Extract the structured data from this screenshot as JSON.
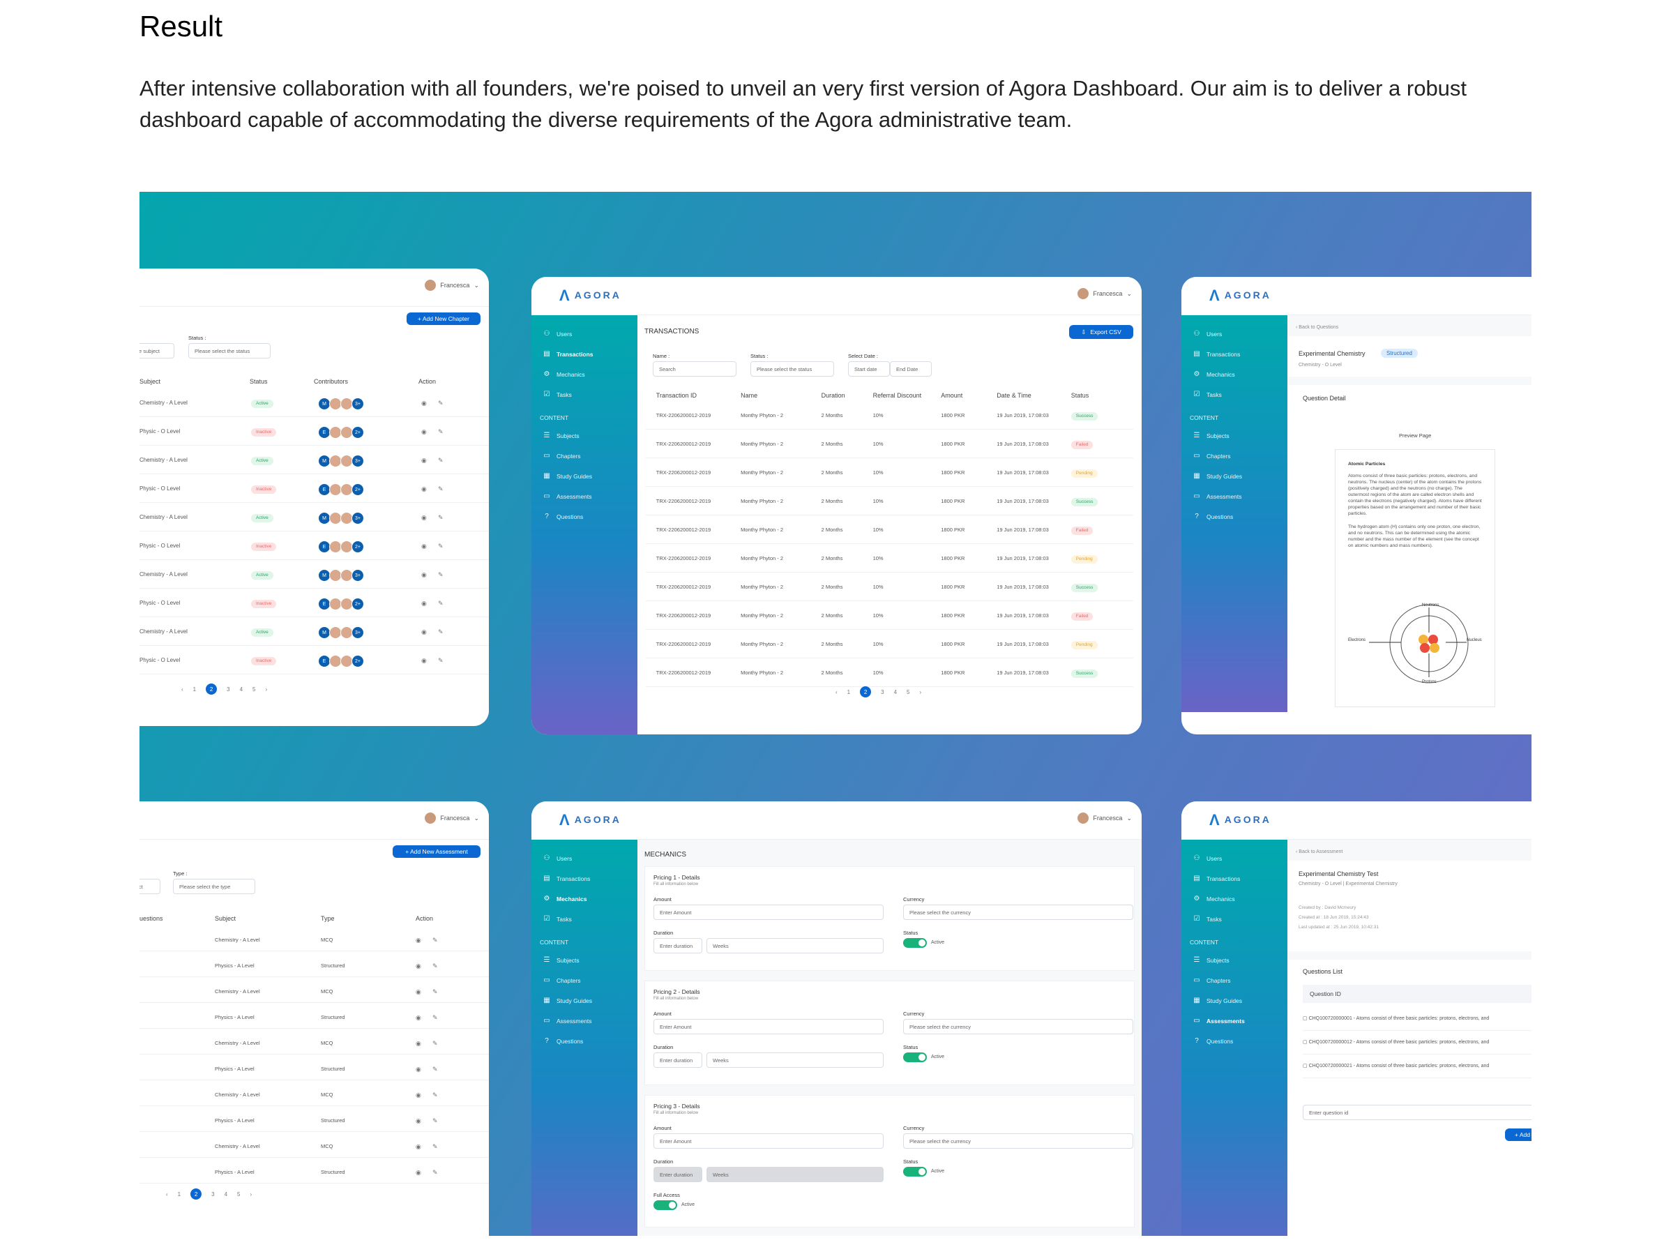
{
  "article": {
    "title": "Result",
    "intro": "After intensive collaboration with all founders, we're poised to unveil an very first version of Agora Dashboard. Our aim is to deliver a robust dashboard capable of accommodating the diverse requirements of the Agora administrative team."
  },
  "app": {
    "logo_text": "AGORA",
    "user_name": "Francesca"
  },
  "colors": {
    "primary": "#0b68d2",
    "sidebar_top": "#00a9ad",
    "sidebar_bottom": "#6a63c6",
    "active": "#2aa866",
    "inactive": "#ee6666",
    "pending": "#e6a52a"
  },
  "sidebar": {
    "items": [
      {
        "label": "Users",
        "icon": "users-icon"
      },
      {
        "label": "Transactions",
        "icon": "card-icon"
      },
      {
        "label": "Mechanics",
        "icon": "gear-icon"
      },
      {
        "label": "Tasks",
        "icon": "tasks-icon"
      }
    ],
    "content_header": "CONTENT",
    "content_items": [
      {
        "label": "Subjects",
        "icon": "list-icon"
      },
      {
        "label": "Chapters",
        "icon": "doc-icon"
      },
      {
        "label": "Study Guides",
        "icon": "grid-icon"
      },
      {
        "label": "Assessments",
        "icon": "doc-icon"
      },
      {
        "label": "Questions",
        "icon": "question-icon"
      }
    ]
  },
  "chapters": {
    "add_button": "+ Add New Chapter",
    "status_label": "Status :",
    "subject_filter": "e subject",
    "status_placeholder": "Please select the status",
    "columns": [
      "Subject",
      "Status",
      "Contributors",
      "Action"
    ],
    "rows": [
      {
        "subject": "Chemistry - A Level",
        "status": "Active",
        "more": "3+"
      },
      {
        "subject": "Physic - O Level",
        "status": "Inactive",
        "more": "2+"
      },
      {
        "subject": "Chemistry - A Level",
        "status": "Active",
        "more": "3+"
      },
      {
        "subject": "Physic - O Level",
        "status": "Inactive",
        "more": "2+"
      },
      {
        "subject": "Chemistry - A Level",
        "status": "Active",
        "more": "3+"
      },
      {
        "subject": "Physic - O Level",
        "status": "Inactive",
        "more": "2+"
      },
      {
        "subject": "Chemistry - A Level",
        "status": "Active",
        "more": "3+"
      },
      {
        "subject": "Physic - O Level",
        "status": "Inactive",
        "more": "2+"
      },
      {
        "subject": "Chemistry - A Level",
        "status": "Active",
        "more": "3+"
      },
      {
        "subject": "Physic - O Level",
        "status": "Inactive",
        "more": "2+"
      }
    ],
    "pages": [
      "1",
      "2",
      "3",
      "4",
      "5"
    ],
    "current_page": "2"
  },
  "transactions": {
    "title": "TRANSACTIONS",
    "export_button": "Export CSV",
    "filters": {
      "name_label": "Name :",
      "name_placeholder": "Search",
      "status_label": "Status :",
      "status_placeholder": "Please select the status",
      "date_label": "Select Date :",
      "start_placeholder": "Start date",
      "end_placeholder": "End Date"
    },
    "columns": [
      "Transaction ID",
      "Name",
      "Duration",
      "Referral Discount",
      "Amount",
      "Date & Time",
      "Status"
    ],
    "rows": [
      {
        "id": "TRX-2206200012-2019",
        "name": "Monthy Phyton - 2",
        "duration": "2 Months",
        "discount": "10%",
        "amount": "1800 PKR",
        "date": "19 Jun 2019, 17:08:03",
        "status": "Success"
      },
      {
        "id": "TRX-2206200012-2019",
        "name": "Monthy Phyton - 2",
        "duration": "2 Months",
        "discount": "10%",
        "amount": "1800 PKR",
        "date": "19 Jun 2019, 17:08:03",
        "status": "Failed"
      },
      {
        "id": "TRX-2206200012-2019",
        "name": "Monthy Phyton - 2",
        "duration": "2 Months",
        "discount": "10%",
        "amount": "1800 PKR",
        "date": "19 Jun 2019, 17:08:03",
        "status": "Pending"
      },
      {
        "id": "TRX-2206200012-2019",
        "name": "Monthy Phyton - 2",
        "duration": "2 Months",
        "discount": "10%",
        "amount": "1800 PKR",
        "date": "19 Jun 2019, 17:08:03",
        "status": "Success"
      },
      {
        "id": "TRX-2206200012-2019",
        "name": "Monthy Phyton - 2",
        "duration": "2 Months",
        "discount": "10%",
        "amount": "1800 PKR",
        "date": "19 Jun 2019, 17:08:03",
        "status": "Failed"
      },
      {
        "id": "TRX-2206200012-2019",
        "name": "Monthy Phyton - 2",
        "duration": "2 Months",
        "discount": "10%",
        "amount": "1800 PKR",
        "date": "19 Jun 2019, 17:08:03",
        "status": "Pending"
      },
      {
        "id": "TRX-2206200012-2019",
        "name": "Monthy Phyton - 2",
        "duration": "2 Months",
        "discount": "10%",
        "amount": "1800 PKR",
        "date": "19 Jun 2019, 17:08:03",
        "status": "Success"
      },
      {
        "id": "TRX-2206200012-2019",
        "name": "Monthy Phyton - 2",
        "duration": "2 Months",
        "discount": "10%",
        "amount": "1800 PKR",
        "date": "19 Jun 2019, 17:08:03",
        "status": "Failed"
      },
      {
        "id": "TRX-2206200012-2019",
        "name": "Monthy Phyton - 2",
        "duration": "2 Months",
        "discount": "10%",
        "amount": "1800 PKR",
        "date": "19 Jun 2019, 17:08:03",
        "status": "Pending"
      },
      {
        "id": "TRX-2206200012-2019",
        "name": "Monthy Phyton - 2",
        "duration": "2 Months",
        "discount": "10%",
        "amount": "1800 PKR",
        "date": "19 Jun 2019, 17:08:03",
        "status": "Success"
      }
    ],
    "pages": [
      "1",
      "2",
      "3",
      "4",
      "5"
    ],
    "current_page": "2"
  },
  "question_detail": {
    "back_link": "Back to Questions",
    "title": "Experimental Chemistry",
    "tag": "Structured",
    "subtitle": "Chemistry - O Level",
    "section": "Question Detail",
    "preview_label": "Preview Page",
    "preview_heading": "Atomic Particles",
    "preview_p1": "Atoms consist of three basic particles: protons, electrons, and neutrons. The nucleus (center) of the atom contains the protons (positively charged) and the neutrons (no charge). The outermost regions of the atom are called electron shells and contain the electrons (negatively charged). Atoms have different properties based on the arrangement and number of their basic particles.",
    "preview_p2": "The hydrogen atom (H) contains only one proton, one electron, and no neutrons. This can be determined using the atomic number and the mass number of the element (see the concept on atomic numbers and mass numbers).",
    "diagram_labels": {
      "neutrons": "Neutrons",
      "electrons": "Electrons",
      "nucleus": "Nucleus",
      "protons": "Protons"
    }
  },
  "assessments": {
    "add_button": "+ Add New Assessment",
    "type_label": "Type :",
    "filter_fragment": "ct",
    "type_placeholder": "Please select the type",
    "columns": [
      "uestions",
      "Subject",
      "Type",
      "Action"
    ],
    "rows": [
      {
        "subject": "Chemistry - A Level",
        "type": "MCQ"
      },
      {
        "subject": "Physics - A Level",
        "type": "Structured"
      },
      {
        "subject": "Chemistry - A Level",
        "type": "MCQ"
      },
      {
        "subject": "Physics - A Level",
        "type": "Structured"
      },
      {
        "subject": "Chemistry - A Level",
        "type": "MCQ"
      },
      {
        "subject": "Physics - A Level",
        "type": "Structured"
      },
      {
        "subject": "Chemistry - A Level",
        "type": "MCQ"
      },
      {
        "subject": "Physics - A Level",
        "type": "Structured"
      },
      {
        "subject": "Chemistry - A Level",
        "type": "MCQ"
      },
      {
        "subject": "Physics - A Level",
        "type": "Structured"
      }
    ],
    "pages": [
      "1",
      "2",
      "3",
      "4",
      "5"
    ],
    "current_page": "2"
  },
  "mechanics": {
    "title": "MECHANICS",
    "fill_hint": "Fill all information below",
    "amount_label": "Amount",
    "amount_placeholder": "Enter Amount",
    "currency_label": "Currency",
    "currency_placeholder": "Please select the currency",
    "duration_label": "Duration",
    "duration_placeholder": "Enter duration",
    "duration_unit": "Weeks",
    "status_label": "Status",
    "status_value": "Active",
    "full_access_label": "Full Access",
    "sections": [
      "Pricing 1 - Details",
      "Pricing 2 - Details",
      "Pricing 3 - Details"
    ]
  },
  "assessment_detail": {
    "back_link": "Back to Assessment",
    "title": "Experimental Chemistry Test",
    "subtitle": "Chemistry - O Level | Experimental Chemistry",
    "created_by": "Created by : David Mcmeury",
    "created_at": "Created at : 18 Jun 2019, 15:24:43",
    "updated_at": "Last updated at : 25 Jun 2019, 10:42:31",
    "list_title": "Questions List",
    "column": "Question ID",
    "questions": [
      "CHQ100720000001 - Atoms consist of three basic particles: protons, electrons, and",
      "CHQ100720000012 - Atoms consist of three basic particles: protons, electrons, and",
      "CHQ100720000021 - Atoms consist of three basic particles: protons, electrons, and"
    ],
    "input_placeholder": "Enter question id",
    "add_button": "+ Add"
  }
}
